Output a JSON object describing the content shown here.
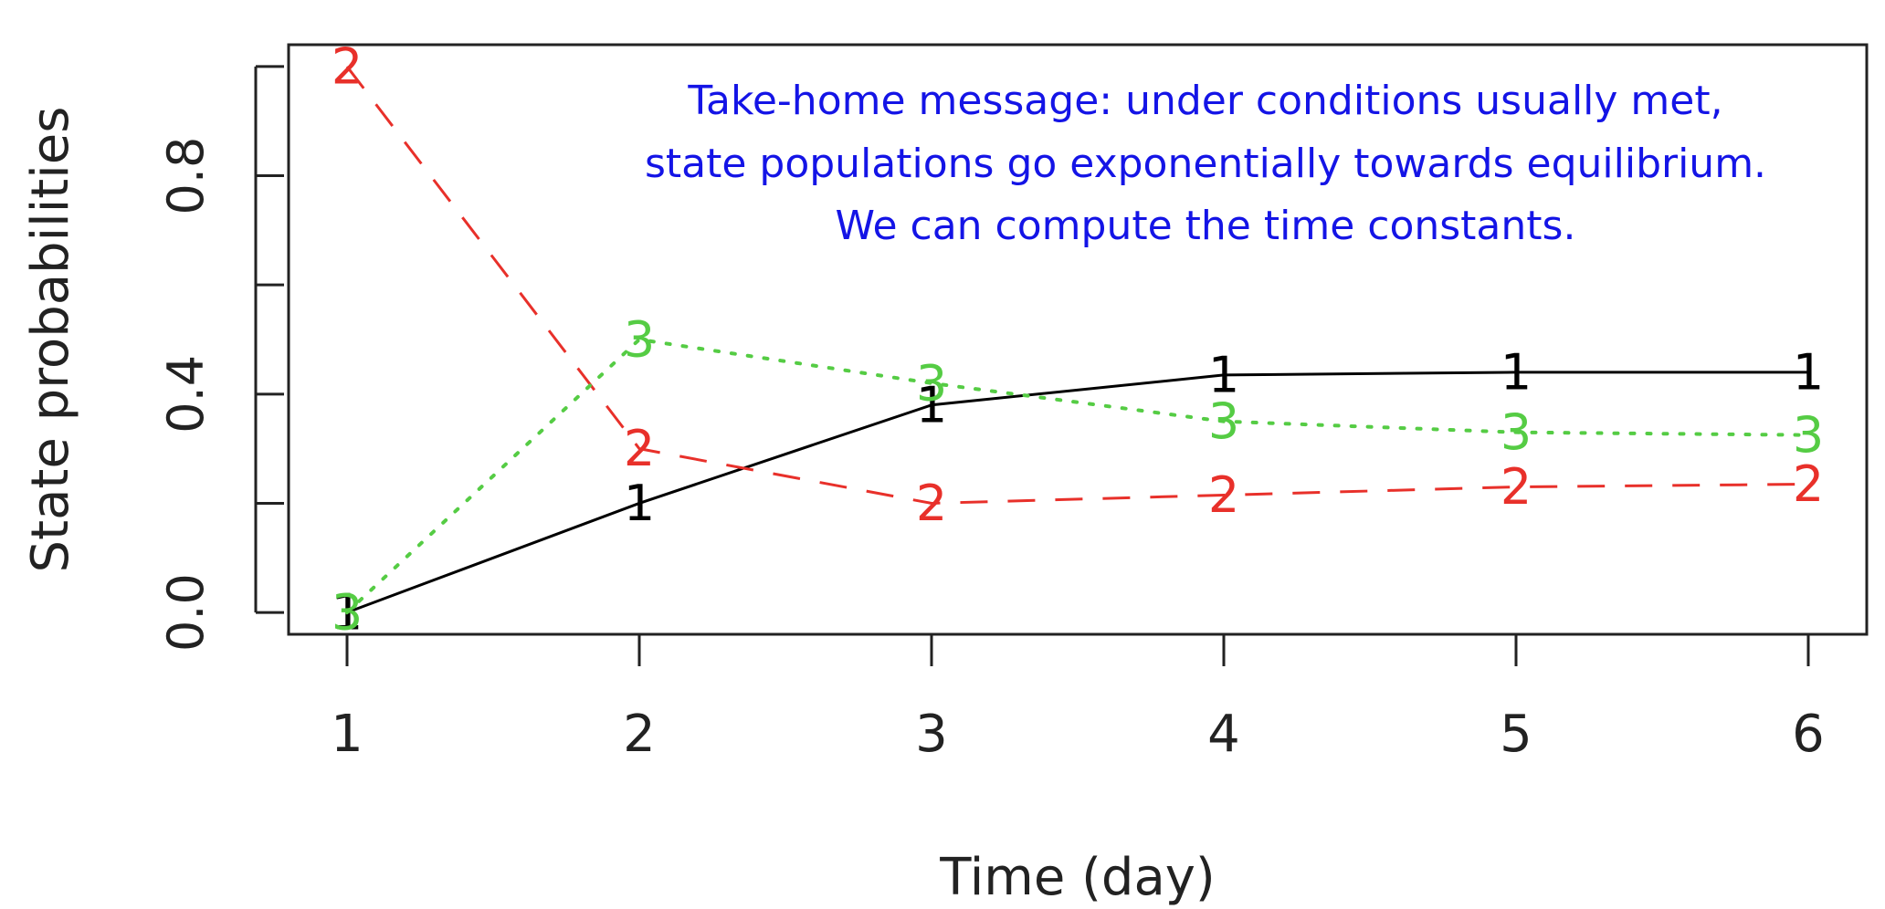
{
  "chart_data": {
    "type": "line",
    "title": "",
    "xlabel": "Time (day)",
    "ylabel": "State probabilities",
    "x": [
      1,
      2,
      3,
      4,
      5,
      6
    ],
    "xlim": [
      0.8,
      6.2
    ],
    "ylim": [
      -0.04,
      1.04
    ],
    "x_ticks": [
      "1",
      "2",
      "3",
      "4",
      "5",
      "6"
    ],
    "y_ticks": [
      "0.0",
      "0.4",
      "0.8"
    ],
    "y_tick_values": [
      0,
      0.2,
      0.4,
      0.6,
      0.8,
      1.0
    ],
    "grid": false,
    "legend": "none",
    "series": [
      {
        "marker": "1",
        "color": "#000000",
        "style": "solid",
        "values": [
          0.0,
          0.2,
          0.38,
          0.435,
          0.44,
          0.44
        ]
      },
      {
        "marker": "2",
        "color": "#e8302a",
        "style": "dashed",
        "values": [
          1.0,
          0.3,
          0.2,
          0.215,
          0.23,
          0.235
        ]
      },
      {
        "marker": "3",
        "color": "#55cc44",
        "style": "dotted",
        "values": [
          0.0,
          0.5,
          0.42,
          0.35,
          0.33,
          0.325
        ]
      }
    ],
    "annotation": {
      "lines": [
        "Take-home message: under conditions usually met,",
        "state populations go exponentially towards equilibrium.",
        "We can compute the time constants."
      ],
      "color": "#1414e6"
    }
  }
}
